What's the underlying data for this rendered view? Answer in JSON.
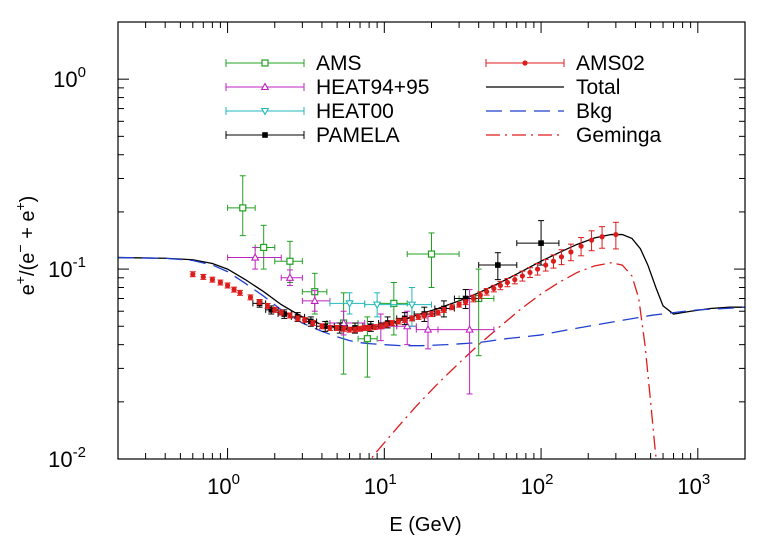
{
  "chart_data": {
    "type": "scatter",
    "xlabel": "E (GeV)",
    "ylabel": {
      "base": "e",
      "sup1": "+",
      "mid": "/(e",
      "sup2": "−",
      "mid2": " + e",
      "sup3": "+",
      "end": ")"
    },
    "xscale": "log",
    "yscale": "log",
    "xlim": [
      0.2,
      2000
    ],
    "ylim": [
      0.01,
      2.0
    ],
    "x_ticks": [
      {
        "value": 1,
        "base": "10",
        "exp": "0"
      },
      {
        "value": 10,
        "base": "10",
        "exp": "1"
      },
      {
        "value": 100,
        "base": "10",
        "exp": "2"
      },
      {
        "value": 1000,
        "base": "10",
        "exp": "3"
      }
    ],
    "y_ticks": [
      {
        "value": 0.01,
        "base": "10",
        "exp": "-2"
      },
      {
        "value": 0.1,
        "base": "10",
        "exp": "-1"
      },
      {
        "value": 1,
        "base": "10",
        "exp": "0"
      }
    ],
    "legend_position": "top-center",
    "series": [
      {
        "name": "AMS",
        "kind": "points",
        "marker": "open-square",
        "color": "#22a022",
        "points": [
          {
            "x": 1.25,
            "y": 0.21,
            "xerr": [
              1.0,
              1.5
            ],
            "yerr": [
              0.15,
              0.31
            ]
          },
          {
            "x": 1.7,
            "y": 0.13,
            "xerr": [
              1.5,
              2.0
            ],
            "yerr": [
              0.1,
              0.17
            ]
          },
          {
            "x": 2.5,
            "y": 0.11,
            "xerr": [
              2.0,
              3.0
            ],
            "yerr": [
              0.085,
              0.14
            ]
          },
          {
            "x": 3.6,
            "y": 0.076,
            "xerr": [
              3.0,
              4.3
            ],
            "yerr": [
              0.058,
              0.095
            ]
          },
          {
            "x": 5.5,
            "y": 0.052,
            "xerr": [
              4.3,
              6.8
            ],
            "yerr": [
              0.028,
              0.075
            ]
          },
          {
            "x": 7.8,
            "y": 0.043,
            "xerr": [
              6.8,
              9.0
            ],
            "yerr": [
              0.027,
              0.056
            ]
          },
          {
            "x": 11.5,
            "y": 0.066,
            "xerr": [
              9.0,
              14.0
            ],
            "yerr": [
              0.045,
              0.085
            ]
          },
          {
            "x": 20,
            "y": 0.12,
            "xerr": [
              14.0,
              30.0
            ],
            "yerr": [
              0.08,
              0.155
            ]
          },
          {
            "x": 40,
            "y": 0.07,
            "xerr": [
              30.0,
              50.0
            ],
            "yerr": [
              0.035,
              0.1
            ]
          }
        ]
      },
      {
        "name": "HEAT94+95",
        "kind": "points",
        "marker": "open-triangle-up",
        "color": "#c022c0",
        "points": [
          {
            "x": 1.5,
            "y": 0.115,
            "xerr": [
              1.0,
              2.2
            ],
            "yerr": [
              0.1,
              0.13
            ]
          },
          {
            "x": 2.5,
            "y": 0.09,
            "xerr": [
              2.2,
              3.0
            ],
            "yerr": [
              0.082,
              0.099
            ]
          },
          {
            "x": 3.6,
            "y": 0.068,
            "xerr": [
              3.0,
              4.5
            ],
            "yerr": [
              0.06,
              0.077
            ]
          },
          {
            "x": 5.5,
            "y": 0.052,
            "xerr": [
              4.5,
              7.5
            ],
            "yerr": [
              0.045,
              0.06
            ]
          },
          {
            "x": 9.5,
            "y": 0.05,
            "xerr": [
              7.5,
              12.0
            ],
            "yerr": [
              0.042,
              0.058
            ]
          },
          {
            "x": 14,
            "y": 0.05,
            "xerr": [
              12.0,
              16.0
            ],
            "yerr": [
              0.04,
              0.06
            ]
          },
          {
            "x": 19,
            "y": 0.048,
            "xerr": [
              16.0,
              22.0
            ],
            "yerr": [
              0.038,
              0.058
            ]
          },
          {
            "x": 35,
            "y": 0.048,
            "xerr": [
              22.0,
              50.0
            ],
            "yerr": [
              0.022,
              0.078
            ]
          }
        ]
      },
      {
        "name": "HEAT00",
        "kind": "points",
        "marker": "open-triangle-down",
        "color": "#22b8b8",
        "points": [
          {
            "x": 6.0,
            "y": 0.066,
            "xerr": [
              4.5,
              7.5
            ],
            "yerr": [
              0.058,
              0.075
            ]
          },
          {
            "x": 9.0,
            "y": 0.065,
            "xerr": [
              7.5,
              11.0
            ],
            "yerr": [
              0.056,
              0.075
            ]
          },
          {
            "x": 15,
            "y": 0.065,
            "xerr": [
              11.0,
              20.0
            ],
            "yerr": [
              0.05,
              0.08
            ]
          }
        ]
      },
      {
        "name": "PAMELA",
        "kind": "points",
        "marker": "filled-square",
        "color": "#000000",
        "points": [
          {
            "x": 1.6,
            "y": 0.066,
            "xerr": [
              1.45,
              1.75
            ],
            "yerr": [
              0.063,
              0.069
            ]
          },
          {
            "x": 1.9,
            "y": 0.061,
            "xerr": [
              1.75,
              2.1
            ],
            "yerr": [
              0.058,
              0.064
            ]
          },
          {
            "x": 2.3,
            "y": 0.058,
            "xerr": [
              2.1,
              2.55
            ],
            "yerr": [
              0.055,
              0.061
            ]
          },
          {
            "x": 2.8,
            "y": 0.056,
            "xerr": [
              2.55,
              3.1
            ],
            "yerr": [
              0.053,
              0.059
            ]
          },
          {
            "x": 3.4,
            "y": 0.053,
            "xerr": [
              3.1,
              3.7
            ],
            "yerr": [
              0.05,
              0.056
            ]
          },
          {
            "x": 4.2,
            "y": 0.05,
            "xerr": [
              3.7,
              4.8
            ],
            "yerr": [
              0.047,
              0.053
            ]
          },
          {
            "x": 5.2,
            "y": 0.049,
            "xerr": [
              4.8,
              5.8
            ],
            "yerr": [
              0.046,
              0.052
            ]
          },
          {
            "x": 6.5,
            "y": 0.049,
            "xerr": [
              5.8,
              7.3
            ],
            "yerr": [
              0.046,
              0.052
            ]
          },
          {
            "x": 8.2,
            "y": 0.05,
            "xerr": [
              7.3,
              9.2
            ],
            "yerr": [
              0.047,
              0.053
            ]
          },
          {
            "x": 10.5,
            "y": 0.052,
            "xerr": [
              9.2,
              12.0
            ],
            "yerr": [
              0.049,
              0.056
            ]
          },
          {
            "x": 13.5,
            "y": 0.055,
            "xerr": [
              12.0,
              15.5
            ],
            "yerr": [
              0.051,
              0.059
            ]
          },
          {
            "x": 18,
            "y": 0.058,
            "xerr": [
              15.5,
              21.0
            ],
            "yerr": [
              0.053,
              0.063
            ]
          },
          {
            "x": 24,
            "y": 0.062,
            "xerr": [
              21.0,
              28.0
            ],
            "yerr": [
              0.056,
              0.068
            ]
          },
          {
            "x": 33,
            "y": 0.07,
            "xerr": [
              28.0,
              40.0
            ],
            "yerr": [
              0.062,
              0.078
            ]
          },
          {
            "x": 53,
            "y": 0.105,
            "xerr": [
              40.0,
              70.0
            ],
            "yerr": [
              0.088,
              0.122
            ]
          },
          {
            "x": 100,
            "y": 0.137,
            "xerr": [
              70.0,
              130.0
            ],
            "yerr": [
              0.105,
              0.18
            ]
          }
        ]
      },
      {
        "name": "AMS02",
        "kind": "points",
        "marker": "filled-circle",
        "color": "#dd1c1c",
        "x": [
          0.6,
          0.7,
          0.8,
          0.9,
          1.0,
          1.1,
          1.2,
          1.4,
          1.6,
          1.8,
          2.0,
          2.2,
          2.5,
          2.8,
          3.1,
          3.5,
          4.0,
          4.5,
          5.0,
          5.5,
          6.0,
          6.5,
          7.0,
          7.5,
          8.0,
          8.7,
          9.5,
          10.3,
          11.2,
          12.3,
          13.5,
          15.0,
          16.5,
          18.0,
          20.0,
          22.0,
          24.0,
          27.0,
          30.0,
          33.0,
          37.0,
          41.0,
          45.0,
          50.0,
          55.0,
          61.0,
          68.0,
          76.0,
          85.0,
          95.0,
          107.0,
          120.0,
          135.0,
          155.0,
          180.0,
          210.0,
          245.0,
          300.0
        ],
        "y": [
          0.094,
          0.091,
          0.088,
          0.085,
          0.082,
          0.078,
          0.075,
          0.071,
          0.067,
          0.064,
          0.061,
          0.059,
          0.057,
          0.055,
          0.054,
          0.052,
          0.05,
          0.049,
          0.049,
          0.0485,
          0.048,
          0.048,
          0.0485,
          0.049,
          0.049,
          0.0495,
          0.05,
          0.051,
          0.052,
          0.053,
          0.054,
          0.055,
          0.056,
          0.057,
          0.058,
          0.059,
          0.061,
          0.063,
          0.065,
          0.067,
          0.07,
          0.073,
          0.076,
          0.079,
          0.082,
          0.085,
          0.088,
          0.092,
          0.096,
          0.1,
          0.105,
          0.11,
          0.116,
          0.123,
          0.132,
          0.142,
          0.148,
          0.152
        ],
        "yerr_frac": [
          0.03,
          0.03,
          0.03,
          0.03,
          0.03,
          0.03,
          0.03,
          0.03,
          0.03,
          0.03,
          0.03,
          0.03,
          0.03,
          0.03,
          0.03,
          0.03,
          0.03,
          0.03,
          0.03,
          0.03,
          0.03,
          0.03,
          0.03,
          0.03,
          0.03,
          0.03,
          0.03,
          0.03,
          0.03,
          0.03,
          0.03,
          0.03,
          0.03,
          0.03,
          0.03,
          0.03,
          0.03,
          0.03,
          0.03,
          0.03,
          0.04,
          0.04,
          0.04,
          0.04,
          0.05,
          0.05,
          0.05,
          0.06,
          0.06,
          0.07,
          0.07,
          0.08,
          0.09,
          0.1,
          0.11,
          0.12,
          0.13,
          0.16
        ]
      },
      {
        "name": "Total",
        "kind": "line",
        "style": "solid",
        "color": "#000000",
        "x": [
          0.2,
          0.4,
          0.6,
          0.8,
          1.0,
          1.3,
          1.7,
          2.2,
          3.0,
          4.0,
          5.0,
          6.0,
          7.0,
          8.0,
          10.0,
          13.0,
          17.0,
          22.0,
          30.0,
          40.0,
          55.0,
          75.0,
          100.0,
          130.0,
          170.0,
          220.0,
          280.0,
          330.0,
          380.0,
          430.0,
          480.0,
          540.0,
          600.0,
          700.0,
          900.0,
          1200.0,
          1600.0,
          2000.0
        ],
        "y": [
          0.115,
          0.114,
          0.112,
          0.107,
          0.1,
          0.088,
          0.076,
          0.065,
          0.056,
          0.051,
          0.049,
          0.048,
          0.048,
          0.049,
          0.051,
          0.054,
          0.058,
          0.062,
          0.068,
          0.075,
          0.085,
          0.097,
          0.11,
          0.122,
          0.135,
          0.146,
          0.152,
          0.152,
          0.145,
          0.128,
          0.105,
          0.08,
          0.064,
          0.058,
          0.06,
          0.062,
          0.063,
          0.063
        ]
      },
      {
        "name": "Bkg",
        "kind": "line",
        "style": "dashed",
        "color": "#1f3fcf",
        "x": [
          0.2,
          0.4,
          0.6,
          0.8,
          1.0,
          1.3,
          1.7,
          2.2,
          3.0,
          4.0,
          5.0,
          6.0,
          7.0,
          8.0,
          10.0,
          13.0,
          17.0,
          25.0,
          40.0,
          60.0,
          100.0,
          150.0,
          200.0,
          300.0,
          500.0,
          700.0,
          1000.0,
          1500.0,
          2000.0
        ],
        "y": [
          0.115,
          0.114,
          0.111,
          0.105,
          0.097,
          0.084,
          0.072,
          0.061,
          0.052,
          0.047,
          0.044,
          0.042,
          0.041,
          0.0405,
          0.04,
          0.0395,
          0.0395,
          0.04,
          0.041,
          0.043,
          0.045,
          0.048,
          0.05,
          0.053,
          0.057,
          0.059,
          0.061,
          0.062,
          0.063
        ]
      },
      {
        "name": "Geminga",
        "kind": "line",
        "style": "dashdot",
        "color": "#dd1c1c",
        "x": [
          7.0,
          9.0,
          12.0,
          16.0,
          22.0,
          30.0,
          40.0,
          55.0,
          75.0,
          100.0,
          130.0,
          170.0,
          220.0,
          280.0,
          330.0,
          380.0,
          420.0,
          460.0,
          500.0,
          530.0,
          550.0
        ],
        "y": [
          0.0085,
          0.011,
          0.0145,
          0.019,
          0.025,
          0.032,
          0.04,
          0.05,
          0.062,
          0.074,
          0.085,
          0.096,
          0.104,
          0.108,
          0.105,
          0.092,
          0.07,
          0.04,
          0.02,
          0.012,
          0.009
        ]
      }
    ]
  }
}
